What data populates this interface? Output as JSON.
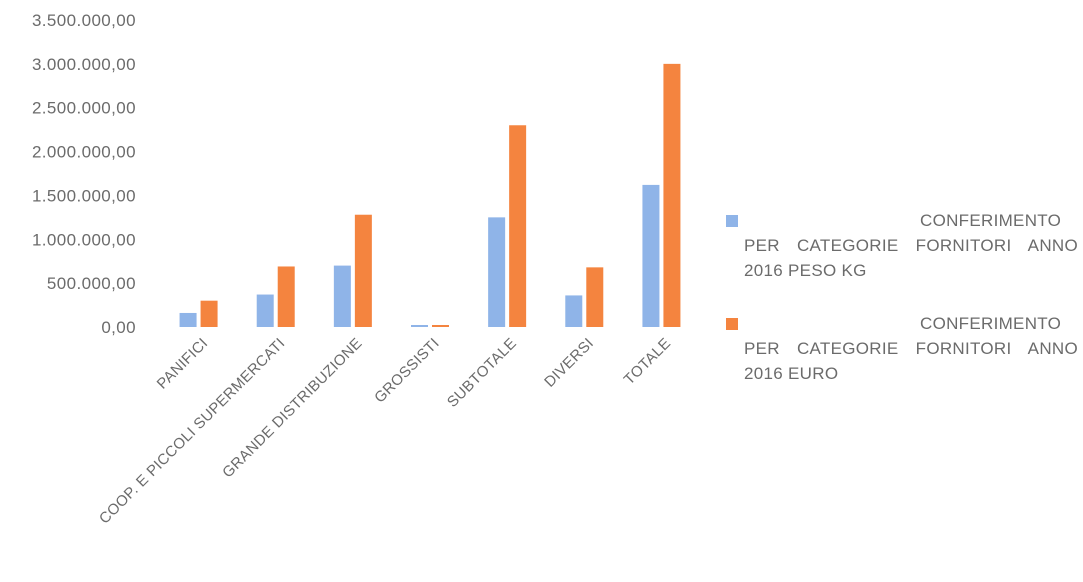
{
  "chart_data": {
    "type": "bar",
    "categories": [
      "PANIFICI",
      "COOP. E PICCOLI SUPERMERCATI",
      "GRANDE DISTRIBUZIONE",
      "GROSSISTI",
      "SUBTOTALE",
      "DIVERSI",
      "TOTALE"
    ],
    "series": [
      {
        "name": "CONFERIMENTO PER CATEGORIE FORNITORI ANNO 2016 PESO KG",
        "color": "#8fb4e8",
        "values": [
          160000,
          370000,
          700000,
          20000,
          1250000,
          360000,
          1620000
        ]
      },
      {
        "name": "CONFERIMENTO PER CATEGORIE FORNITORI ANNO 2016 EURO",
        "color": "#f4843f",
        "values": [
          300000,
          690000,
          1280000,
          20000,
          2300000,
          680000,
          3000000
        ]
      }
    ],
    "yticks": [
      "0,00",
      "500.000,00",
      "1.000.000,00",
      "1.500.000,00",
      "2.000.000,00",
      "2.500.000,00",
      "3.000.000,00",
      "3.500.000,00"
    ],
    "ylim": [
      0,
      3500000
    ],
    "grid": false,
    "legend_position": "right",
    "title": "",
    "xlabel": "",
    "ylabel": ""
  }
}
